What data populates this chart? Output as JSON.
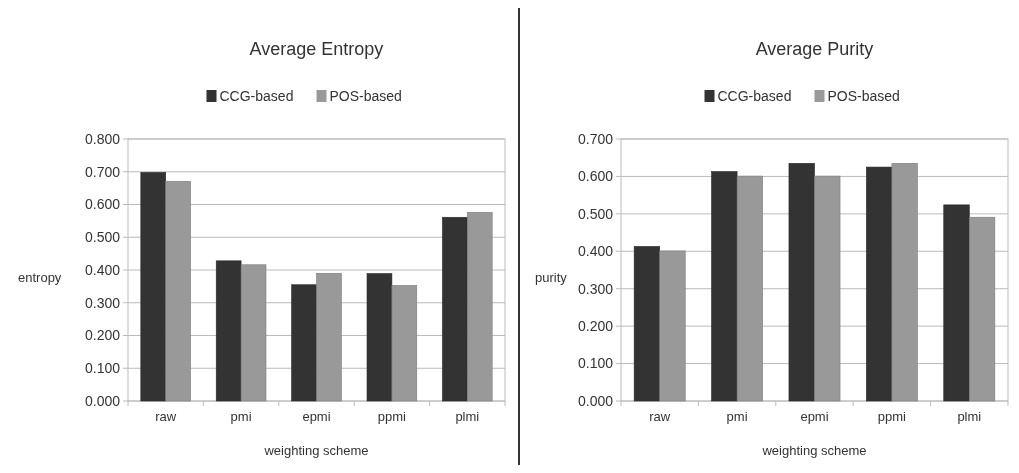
{
  "chart_data": [
    {
      "type": "bar",
      "title": "Average Entropy",
      "xlabel": "weighting scheme",
      "ylabel": "entropy",
      "categories": [
        "raw",
        "pmi",
        "epmi",
        "ppmi",
        "plmi"
      ],
      "series": [
        {
          "name": "CCG-based",
          "color": "#333333",
          "values": [
            0.698,
            0.428,
            0.355,
            0.389,
            0.561
          ]
        },
        {
          "name": "POS-based",
          "color": "#999999",
          "values": [
            0.671,
            0.416,
            0.39,
            0.353,
            0.576
          ]
        }
      ],
      "ylim": [
        0,
        0.8
      ],
      "yticks": [
        {
          "value": 0,
          "label": "0.000"
        },
        {
          "value": 0.1,
          "label": "0.100"
        },
        {
          "value": 0.2,
          "label": "0.200"
        },
        {
          "value": 0.3,
          "label": "0.300"
        },
        {
          "value": 0.4,
          "label": "0.400"
        },
        {
          "value": 0.5,
          "label": "0.500"
        },
        {
          "value": 0.6,
          "label": "0.600"
        },
        {
          "value": 0.7,
          "label": "0.700"
        },
        {
          "value": 0.8,
          "label": "0.800"
        }
      ],
      "grid": "y",
      "legend": "top"
    },
    {
      "type": "bar",
      "title": "Average Purity",
      "xlabel": "weighting scheme",
      "ylabel": "purity",
      "categories": [
        "raw",
        "pmi",
        "epmi",
        "ppmi",
        "plmi"
      ],
      "series": [
        {
          "name": "CCG-based",
          "color": "#333333",
          "values": [
            0.413,
            0.613,
            0.635,
            0.625,
            0.524
          ]
        },
        {
          "name": "POS-based",
          "color": "#999999",
          "values": [
            0.401,
            0.601,
            0.601,
            0.635,
            0.491
          ]
        }
      ],
      "ylim": [
        0,
        0.7
      ],
      "yticks": [
        {
          "value": 0,
          "label": "0.000"
        },
        {
          "value": 0.1,
          "label": "0.100"
        },
        {
          "value": 0.2,
          "label": "0.200"
        },
        {
          "value": 0.3,
          "label": "0.300"
        },
        {
          "value": 0.4,
          "label": "0.400"
        },
        {
          "value": 0.5,
          "label": "0.500"
        },
        {
          "value": 0.6,
          "label": "0.600"
        },
        {
          "value": 0.7,
          "label": "0.700"
        }
      ],
      "grid": "y",
      "legend": "top"
    }
  ]
}
